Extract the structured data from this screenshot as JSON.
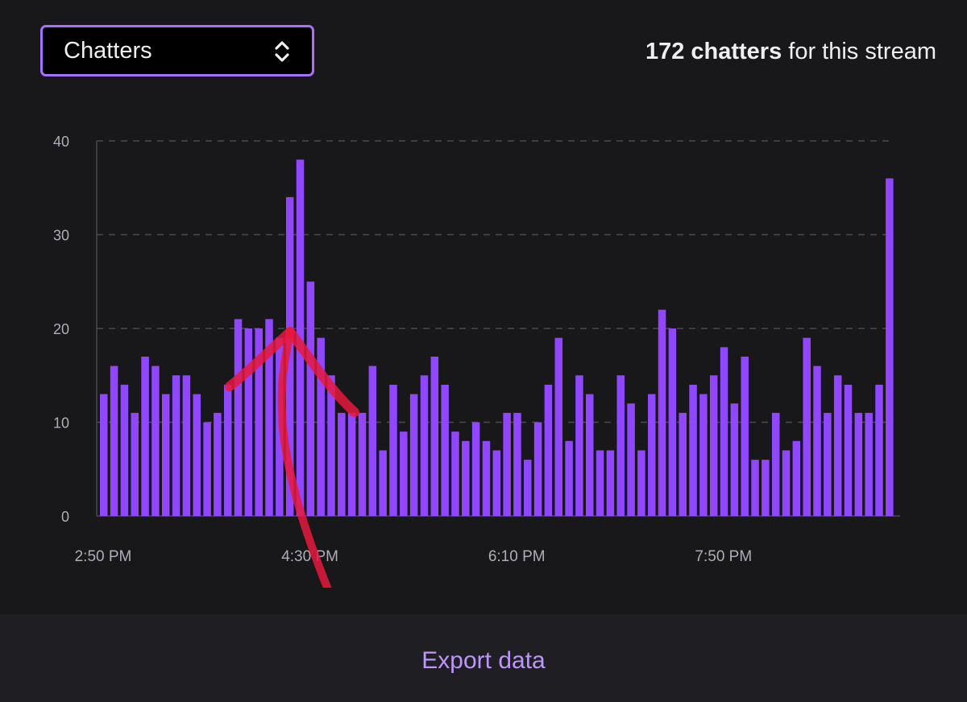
{
  "selector": {
    "selected_label": "Chatters"
  },
  "summary": {
    "count": "172 chatters",
    "suffix": " for this stream"
  },
  "footer": {
    "export_label": "Export data"
  },
  "colors": {
    "bar": "#9147ff",
    "accent": "#a970ff",
    "link": "#bf94ff",
    "annotation": "#e8193c"
  },
  "chart_data": {
    "type": "bar",
    "ylim": [
      0,
      40
    ],
    "yticks": [
      0,
      10,
      20,
      30,
      40
    ],
    "xtick_labels": [
      "2:50 PM",
      "4:30 PM",
      "6:10 PM",
      "7:50 PM"
    ],
    "xtick_bar_index": [
      0,
      20,
      40,
      60
    ],
    "grid": true,
    "values": [
      13,
      16,
      14,
      11,
      17,
      16,
      13,
      15,
      15,
      13,
      10,
      11,
      14,
      21,
      20,
      20,
      21,
      19,
      34,
      38,
      25,
      19,
      15,
      11,
      11,
      11,
      16,
      7,
      14,
      9,
      13,
      15,
      17,
      14,
      9,
      8,
      10,
      8,
      7,
      11,
      11,
      6,
      10,
      14,
      19,
      8,
      15,
      13,
      7,
      7,
      15,
      12,
      7,
      13,
      22,
      20,
      11,
      14,
      13,
      15,
      18,
      12,
      17,
      6,
      6,
      11,
      7,
      8,
      19,
      16,
      11,
      15,
      14,
      11,
      11,
      14,
      36
    ],
    "annotation": "hand-drawn red arrow pointing up at the 4:30 PM spike"
  }
}
